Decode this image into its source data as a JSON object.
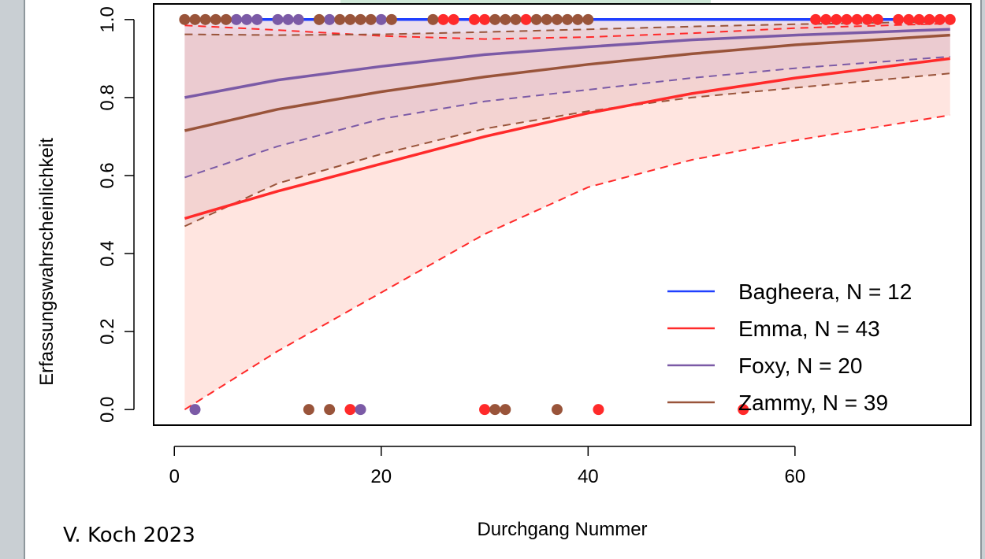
{
  "caption": "V. Koch 2023",
  "chart_data": {
    "type": "line",
    "title": "",
    "xlabel": "Durchgang Nummer",
    "ylabel": "Erfassungswahrscheinlichkeit",
    "xlim": [
      -2,
      77
    ],
    "ylim": [
      -0.04,
      1.04
    ],
    "xticks": [
      0,
      20,
      40,
      60
    ],
    "yticks": [
      0.0,
      0.2,
      0.4,
      0.6,
      0.8,
      1.0
    ],
    "xtick_labels": [
      "0",
      "20",
      "40",
      "60"
    ],
    "ytick_labels": [
      "0.0",
      "0.2",
      "0.4",
      "0.6",
      "0.8",
      "1.0"
    ],
    "grid": false,
    "legend_position": "bottom-right",
    "legend": [
      {
        "label": "Bagheera, N = 12",
        "color": "#1f3fff"
      },
      {
        "label": "Emma, N = 43",
        "color": "#ff2a2a"
      },
      {
        "label": "Foxy, N = 20",
        "color": "#7b5aa6"
      },
      {
        "label": "Zammy, N = 39",
        "color": "#99543a"
      }
    ],
    "series": [
      {
        "name": "Bagheera, N = 12",
        "color": "#1f3fff",
        "band_color": "#ffffff",
        "x": [
          1,
          75
        ],
        "fit": [
          1.0,
          1.0
        ],
        "lower": [
          1.0,
          1.0
        ],
        "upper": [
          1.0,
          1.0
        ],
        "points": []
      },
      {
        "name": "Emma, N = 43",
        "color": "#ff2a2a",
        "band_color": "#ffcfc6",
        "x": [
          1,
          10,
          20,
          30,
          40,
          50,
          60,
          75
        ],
        "fit": [
          0.49,
          0.56,
          0.63,
          0.7,
          0.76,
          0.81,
          0.85,
          0.9
        ],
        "lower": [
          0.0,
          0.15,
          0.3,
          0.45,
          0.57,
          0.64,
          0.69,
          0.755
        ],
        "upper": [
          0.985,
          0.973,
          0.958,
          0.95,
          0.955,
          0.965,
          0.978,
          0.99
        ],
        "points": [
          {
            "x": 17,
            "y": 0
          },
          {
            "x": 30,
            "y": 0
          },
          {
            "x": 41,
            "y": 0
          },
          {
            "x": 55,
            "y": 0
          },
          {
            "x": 26,
            "y": 1
          },
          {
            "x": 27,
            "y": 1
          },
          {
            "x": 29,
            "y": 1
          },
          {
            "x": 30,
            "y": 1
          },
          {
            "x": 34,
            "y": 1
          },
          {
            "x": 62,
            "y": 1
          },
          {
            "x": 63,
            "y": 1
          },
          {
            "x": 64,
            "y": 1
          },
          {
            "x": 65,
            "y": 1
          },
          {
            "x": 66,
            "y": 1
          },
          {
            "x": 67,
            "y": 1
          },
          {
            "x": 68,
            "y": 1
          },
          {
            "x": 70,
            "y": 1
          },
          {
            "x": 71,
            "y": 1
          },
          {
            "x": 72,
            "y": 1
          },
          {
            "x": 73,
            "y": 1
          },
          {
            "x": 74,
            "y": 1
          },
          {
            "x": 75,
            "y": 1
          }
        ]
      },
      {
        "name": "Foxy, N = 20",
        "color": "#7b5aa6",
        "band_color": "#dfc5dd",
        "x": [
          1,
          10,
          20,
          30,
          40,
          50,
          60,
          75
        ],
        "fit": [
          0.8,
          0.845,
          0.88,
          0.91,
          0.93,
          0.948,
          0.96,
          0.975
        ],
        "lower": [
          0.595,
          0.675,
          0.745,
          0.79,
          0.82,
          0.85,
          0.875,
          0.905
        ],
        "upper": [
          1.0,
          1.0,
          1.0,
          1.0,
          1.0,
          1.0,
          1.0,
          1.0
        ],
        "points": [
          {
            "x": 2,
            "y": 0
          },
          {
            "x": 18,
            "y": 0
          },
          {
            "x": 6,
            "y": 1
          },
          {
            "x": 7,
            "y": 1
          },
          {
            "x": 8,
            "y": 1
          },
          {
            "x": 10,
            "y": 1
          },
          {
            "x": 11,
            "y": 1
          },
          {
            "x": 12,
            "y": 1
          },
          {
            "x": 15,
            "y": 1
          },
          {
            "x": 20,
            "y": 1
          }
        ]
      },
      {
        "name": "Zammy, N = 39",
        "color": "#99543a",
        "band_color": "#e9c5c5",
        "x": [
          1,
          10,
          20,
          30,
          40,
          50,
          60,
          75
        ],
        "fit": [
          0.715,
          0.77,
          0.815,
          0.853,
          0.885,
          0.912,
          0.935,
          0.96
        ],
        "lower": [
          0.47,
          0.58,
          0.655,
          0.72,
          0.765,
          0.8,
          0.825,
          0.862
        ],
        "upper": [
          0.962,
          0.96,
          0.962,
          0.968,
          0.975,
          0.982,
          0.988,
          0.995
        ],
        "points": [
          {
            "x": 13,
            "y": 0
          },
          {
            "x": 15,
            "y": 0
          },
          {
            "x": 31,
            "y": 0
          },
          {
            "x": 32,
            "y": 0
          },
          {
            "x": 37,
            "y": 0
          },
          {
            "x": 1,
            "y": 1
          },
          {
            "x": 2,
            "y": 1
          },
          {
            "x": 3,
            "y": 1
          },
          {
            "x": 4,
            "y": 1
          },
          {
            "x": 5,
            "y": 1
          },
          {
            "x": 14,
            "y": 1
          },
          {
            "x": 16,
            "y": 1
          },
          {
            "x": 17,
            "y": 1
          },
          {
            "x": 18,
            "y": 1
          },
          {
            "x": 19,
            "y": 1
          },
          {
            "x": 21,
            "y": 1
          },
          {
            "x": 25,
            "y": 1
          },
          {
            "x": 31,
            "y": 1
          },
          {
            "x": 32,
            "y": 1
          },
          {
            "x": 33,
            "y": 1
          },
          {
            "x": 35,
            "y": 1
          },
          {
            "x": 36,
            "y": 1
          },
          {
            "x": 37,
            "y": 1
          },
          {
            "x": 38,
            "y": 1
          },
          {
            "x": 39,
            "y": 1
          },
          {
            "x": 40,
            "y": 1
          }
        ]
      }
    ]
  }
}
